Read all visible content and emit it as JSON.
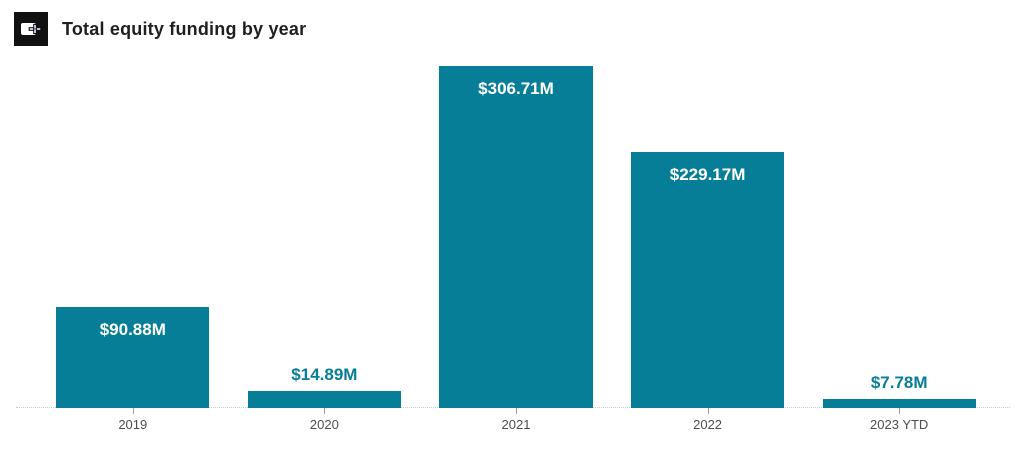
{
  "header": {
    "title": "Total equity funding by year",
    "icon": "chart-plus-icon"
  },
  "chart_data": {
    "type": "bar",
    "title": "Total equity funding by year",
    "categories": [
      "2019",
      "2020",
      "2021",
      "2022",
      "2023 YTD"
    ],
    "values": [
      90.88,
      14.89,
      306.71,
      229.17,
      7.78
    ],
    "value_labels": [
      "$90.88M",
      "$14.89M",
      "$306.71M",
      "$229.17M",
      "$7.78M"
    ],
    "unit": "USD millions",
    "xlabel": "",
    "ylabel": "",
    "ylim": [
      0,
      312
    ],
    "gridlines": false,
    "legend": false,
    "value_label_placement_rule": "inside bar when bar is tall, above bar when short",
    "colors": {
      "bar": "#077E97",
      "label_inside": "#FFFFFF",
      "label_outside": "#077E97",
      "axis_line": "#C9C9C9",
      "tick": "#9E9E9E",
      "category_label": "#4D4D4D",
      "title": "#1F1F1F",
      "icon_background": "#111111"
    }
  }
}
